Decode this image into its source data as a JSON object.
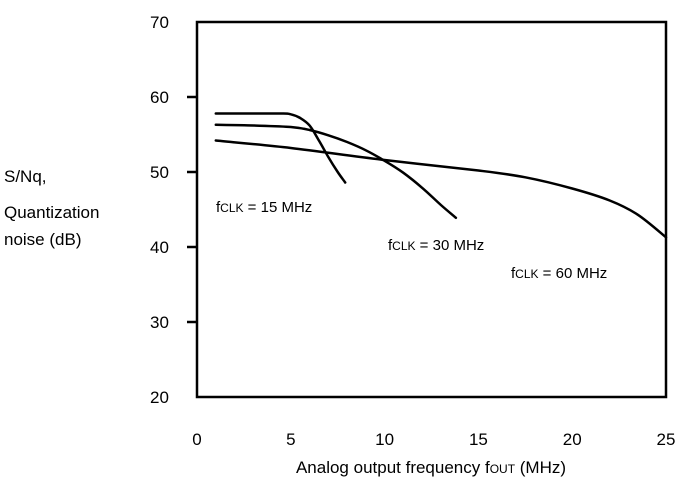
{
  "chart_data": {
    "type": "line",
    "title": "",
    "ylabel_lines": [
      "S/Nq,",
      "Quantization",
      "noise (dB)"
    ],
    "xlabel": {
      "main": "Analog output frequency f",
      "sub": "OUT",
      "unit": " (MHz)"
    },
    "xlim": [
      0,
      25
    ],
    "ylim": [
      20,
      70
    ],
    "x_ticks": [
      0,
      5,
      10,
      15,
      20,
      25
    ],
    "y_ticks": [
      20,
      30,
      40,
      50,
      60,
      70
    ],
    "grid": false,
    "series": [
      {
        "label": {
          "main": "f",
          "sub": "CLK",
          "rest": " = 15 MHz"
        },
        "points": [
          [
            1,
            57.8
          ],
          [
            2.5,
            57.8
          ],
          [
            4.5,
            57.8
          ],
          [
            5.0,
            57.7
          ],
          [
            5.5,
            57.2
          ],
          [
            6.0,
            56.2
          ],
          [
            6.5,
            54.2
          ],
          [
            7.0,
            52.0
          ],
          [
            7.5,
            50.0
          ],
          [
            7.9,
            48.6
          ]
        ]
      },
      {
        "label": {
          "main": "f",
          "sub": "CLK",
          "rest": " = 30 MHz"
        },
        "points": [
          [
            1,
            56.3
          ],
          [
            3,
            56.2
          ],
          [
            5,
            56.0
          ],
          [
            6,
            55.6
          ],
          [
            7,
            54.9
          ],
          [
            8,
            54.0
          ],
          [
            9,
            52.9
          ],
          [
            10,
            51.5
          ],
          [
            11,
            49.9
          ],
          [
            12,
            47.9
          ],
          [
            13,
            45.6
          ],
          [
            13.8,
            43.9
          ]
        ]
      },
      {
        "label": {
          "main": "f",
          "sub": "CLK",
          "rest": " = 60 MHz"
        },
        "points": [
          [
            1,
            54.2
          ],
          [
            5,
            53.2
          ],
          [
            10,
            51.6
          ],
          [
            15,
            50.2
          ],
          [
            17.5,
            49.3
          ],
          [
            20,
            47.8
          ],
          [
            22,
            46.2
          ],
          [
            23.5,
            44.3
          ],
          [
            25,
            41.3
          ]
        ]
      }
    ]
  }
}
